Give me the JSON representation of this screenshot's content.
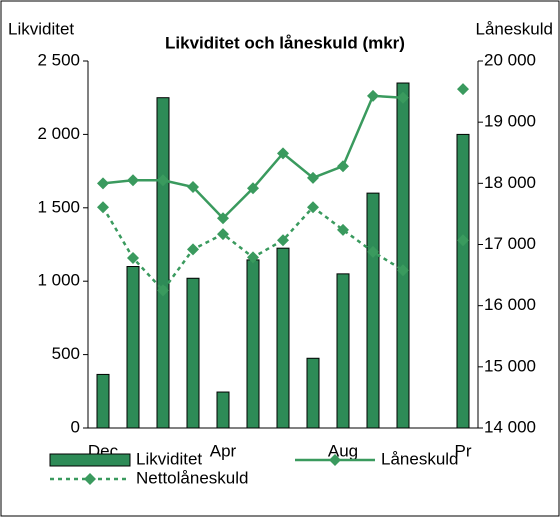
{
  "chart_data": {
    "type": "bar-line",
    "title": "Likviditet och låneskuld (mkr)",
    "ylabel": "Likviditet",
    "y2label": "Låneskuld",
    "categories": [
      "Dec",
      null,
      null,
      null,
      "Apr",
      null,
      null,
      null,
      "Aug",
      null,
      null,
      null,
      "Pr"
    ],
    "ylim": [
      0,
      2500
    ],
    "yticks": [
      0,
      500,
      {
        "value": 1000,
        "label": "1 000"
      },
      {
        "value": 1500,
        "label": "1 500"
      },
      {
        "value": 2000,
        "label": "2 000"
      },
      {
        "value": 2500,
        "label": "2 500"
      }
    ],
    "y2lim": [
      14000,
      20000
    ],
    "y2ticks": [
      {
        "value": 14000,
        "label": "14 000"
      },
      {
        "value": 15000,
        "label": "15 000"
      },
      {
        "value": 16000,
        "label": "16 000"
      },
      {
        "value": 17000,
        "label": "17 000"
      },
      {
        "value": 18000,
        "label": "18 000"
      },
      {
        "value": 19000,
        "label": "19 000"
      },
      {
        "value": 20000,
        "label": "20 000"
      }
    ],
    "series": [
      {
        "name": "Likviditet",
        "kind": "bar",
        "color": "#2e8b57",
        "values": [
          365,
          1100,
          2250,
          1020,
          245,
          1145,
          1225,
          475,
          1050,
          1600,
          2350,
          null,
          2000
        ]
      },
      {
        "name": "Låneskuld",
        "kind": "line",
        "axis": "y2",
        "color": "#3a9a5e",
        "values": [
          18000,
          18050,
          18050,
          17940,
          17430,
          17920,
          18490,
          18090,
          18280,
          19430,
          19400,
          null,
          19540
        ]
      },
      {
        "name": "Nettolåneskuld",
        "kind": "dashed",
        "axis": "y2",
        "color": "#3a9a5e",
        "values": [
          17610,
          16780,
          16250,
          16920,
          17170,
          16790,
          17070,
          17610,
          17240,
          16880,
          16580,
          null,
          17070
        ]
      }
    ]
  }
}
